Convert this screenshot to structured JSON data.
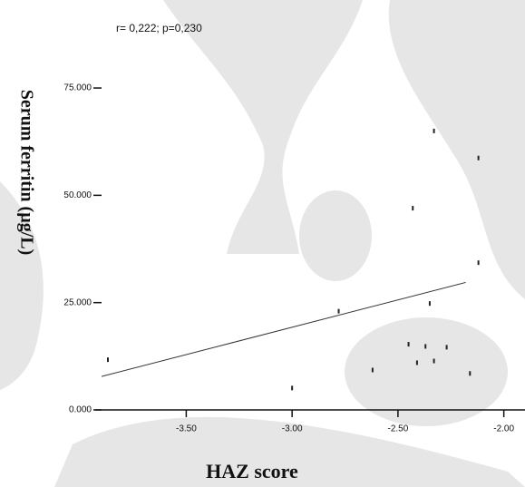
{
  "chart_data": {
    "type": "scatter",
    "annotation": "r= 0,222; p=0,230",
    "x_label": "HAZ score",
    "y_label": "Serum ferritin  (µg/L)",
    "x": [
      -3.87,
      -3.0,
      -2.78,
      -2.62,
      -2.45,
      -2.43,
      -2.41,
      -2.37,
      -2.35,
      -2.33,
      -2.33,
      -2.27,
      -2.16,
      -2.12,
      -2.12
    ],
    "values": [
      11.7,
      5.1,
      23,
      9.3,
      15.3,
      47,
      11,
      14.8,
      24.8,
      11.4,
      65,
      14.6,
      8.5,
      34.3,
      58.7
    ],
    "color": "#222222",
    "fit_line": {
      "x": [
        -3.9,
        -2.18
      ],
      "values": [
        7.8,
        29.7
      ],
      "color": "#333333"
    },
    "xlim": [
      -3.9,
      -1.9
    ],
    "ylim": [
      0,
      95
    ],
    "xticks": [
      {
        "value": -3.5,
        "label": "-3.50"
      },
      {
        "value": -3.0,
        "label": "-3.00"
      },
      {
        "value": -2.5,
        "label": "-2.50"
      },
      {
        "value": -2.0,
        "label": "-2.00"
      }
    ],
    "yticks": [
      {
        "value": 0,
        "label": "0.000"
      },
      {
        "value": 25,
        "label": "25.000"
      },
      {
        "value": 50,
        "label": "50.000"
      },
      {
        "value": 75,
        "label": "75.000"
      }
    ]
  }
}
